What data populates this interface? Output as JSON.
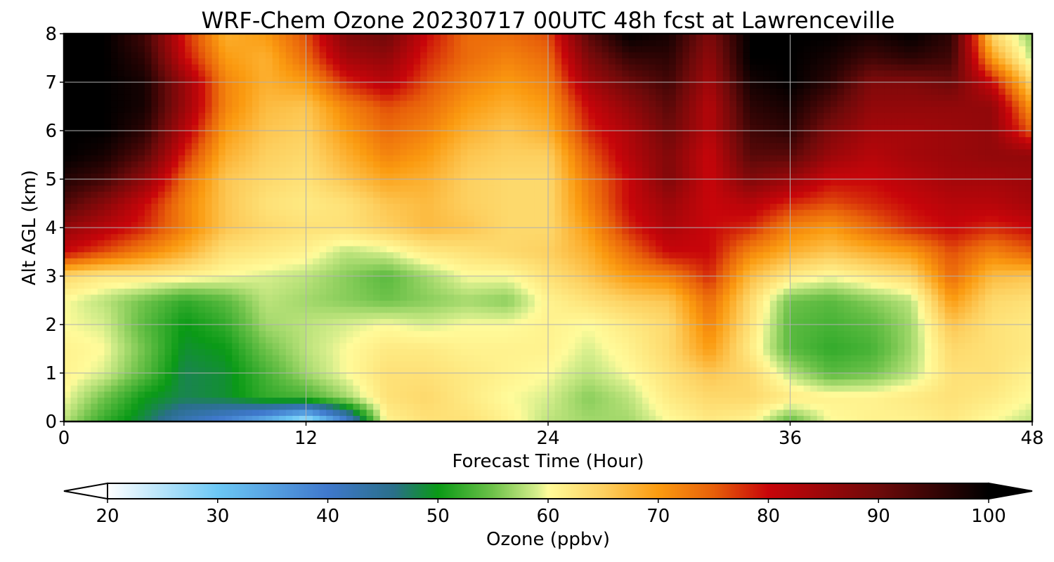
{
  "chart_data": [
    {
      "type": "heatmap",
      "title": "WRF-Chem Ozone  20230717 00UTC 48h fcst at Lawrenceville",
      "xlabel": "Forecast Time (Hour)",
      "ylabel": "Alt AGL (km)",
      "xlim": [
        0,
        48
      ],
      "ylim": [
        0,
        8
      ],
      "xticks": [
        "0",
        "12",
        "24",
        "36",
        "48"
      ],
      "yticks": [
        "0",
        "1",
        "2",
        "3",
        "4",
        "5",
        "6",
        "7",
        "8"
      ],
      "grid": true,
      "x": [
        0,
        2,
        4,
        6,
        8,
        10,
        12,
        14,
        16,
        18,
        20,
        22,
        24,
        26,
        28,
        30,
        32,
        34,
        36,
        38,
        40,
        42,
        44,
        46,
        48
      ],
      "y": [
        0,
        0.5,
        1,
        1.5,
        2,
        2.5,
        3,
        3.5,
        4,
        4.5,
        5,
        5.5,
        6,
        6.5,
        7,
        7.5,
        8
      ],
      "z_units": "ppbv",
      "z": [
        [
          58,
          52,
          48,
          42,
          38,
          32,
          24,
          38,
          61,
          63,
          63,
          61,
          58,
          57,
          57,
          60,
          62,
          61,
          54,
          60,
          61,
          61,
          62,
          60,
          58
        ],
        [
          60,
          55,
          50,
          48,
          49,
          52,
          53,
          57,
          63,
          64,
          62,
          60,
          59,
          56,
          58,
          62,
          64,
          64,
          62,
          61,
          61,
          62,
          63,
          62,
          60
        ],
        [
          61,
          59,
          54,
          48,
          49,
          53,
          57,
          60,
          63,
          63,
          62,
          61,
          60,
          58,
          60,
          63,
          66,
          64,
          58,
          54,
          55,
          58,
          63,
          63,
          61
        ],
        [
          61,
          60,
          55,
          49,
          50,
          55,
          58,
          60,
          62,
          62,
          61,
          61,
          61,
          59,
          61,
          64,
          70,
          62,
          54,
          52,
          53,
          57,
          64,
          63,
          62
        ],
        [
          60,
          59,
          54,
          50,
          52,
          57,
          58,
          59,
          60,
          59,
          60,
          60,
          61,
          60,
          62,
          64,
          72,
          63,
          54,
          53,
          54,
          57,
          66,
          63,
          62
        ],
        [
          60,
          58,
          55,
          52,
          54,
          58,
          57,
          56,
          55,
          56,
          57,
          56,
          61,
          63,
          65,
          66,
          74,
          64,
          55,
          54,
          56,
          58,
          70,
          64,
          63
        ],
        [
          64,
          62,
          62,
          61,
          60,
          59,
          58,
          56,
          54,
          57,
          60,
          60,
          63,
          66,
          70,
          72,
          78,
          67,
          62,
          60,
          62,
          64,
          74,
          67,
          66
        ],
        [
          80,
          76,
          72,
          68,
          63,
          62,
          61,
          58,
          59,
          62,
          63,
          64,
          65,
          68,
          74,
          80,
          80,
          72,
          68,
          66,
          68,
          70,
          76,
          72,
          75
        ],
        [
          86,
          82,
          78,
          72,
          66,
          64,
          63,
          63,
          65,
          67,
          66,
          64,
          64,
          70,
          78,
          83,
          80,
          78,
          72,
          70,
          74,
          78,
          80,
          78,
          80
        ],
        [
          93,
          87,
          80,
          72,
          66,
          63,
          62,
          63,
          66,
          67,
          65,
          64,
          64,
          72,
          80,
          85,
          80,
          82,
          78,
          76,
          78,
          80,
          82,
          82,
          84
        ],
        [
          97,
          94,
          86,
          74,
          66,
          64,
          63,
          66,
          69,
          68,
          65,
          64,
          64,
          73,
          80,
          88,
          80,
          88,
          85,
          80,
          80,
          82,
          84,
          84,
          85
        ],
        [
          100,
          98,
          92,
          78,
          68,
          65,
          64,
          68,
          72,
          70,
          66,
          65,
          65,
          75,
          82,
          88,
          80,
          92,
          92,
          85,
          82,
          84,
          85,
          86,
          86
        ],
        [
          100,
          100,
          96,
          82,
          70,
          66,
          65,
          70,
          74,
          72,
          68,
          66,
          68,
          78,
          83,
          90,
          82,
          94,
          96,
          88,
          84,
          84,
          85,
          86,
          75
        ],
        [
          100,
          100,
          98,
          85,
          72,
          67,
          66,
          72,
          76,
          74,
          70,
          68,
          70,
          80,
          86,
          92,
          82,
          96,
          98,
          92,
          86,
          86,
          86,
          86,
          70
        ],
        [
          100,
          100,
          98,
          85,
          72,
          68,
          70,
          78,
          82,
          76,
          72,
          70,
          72,
          84,
          90,
          94,
          84,
          98,
          100,
          96,
          88,
          88,
          90,
          80,
          64
        ],
        [
          100,
          100,
          96,
          80,
          70,
          68,
          74,
          84,
          86,
          78,
          74,
          72,
          74,
          88,
          95,
          96,
          86,
          100,
          100,
          98,
          94,
          96,
          94,
          70,
          58
        ],
        [
          100,
          100,
          94,
          78,
          68,
          70,
          76,
          88,
          90,
          80,
          74,
          74,
          76,
          92,
          100,
          98,
          88,
          100,
          100,
          100,
          98,
          100,
          96,
          64,
          56
        ]
      ],
      "colorbar": {
        "label": "Ozone  (ppbv)",
        "min": 20,
        "max": 100,
        "extend": "both",
        "ticks": [
          "20",
          "30",
          "40",
          "50",
          "60",
          "70",
          "80",
          "90",
          "100"
        ],
        "colors": [
          {
            "v": 20,
            "c": "#ffffff"
          },
          {
            "v": 30,
            "c": "#6cc8f5"
          },
          {
            "v": 40,
            "c": "#3f78cc"
          },
          {
            "v": 46,
            "c": "#2a6f8a"
          },
          {
            "v": 50,
            "c": "#0a9a16"
          },
          {
            "v": 55,
            "c": "#6ec24a"
          },
          {
            "v": 59,
            "c": "#d6ee8c"
          },
          {
            "v": 60,
            "c": "#fffb9a"
          },
          {
            "v": 65,
            "c": "#fdd060"
          },
          {
            "v": 70,
            "c": "#fb9b10"
          },
          {
            "v": 75,
            "c": "#e8600a"
          },
          {
            "v": 80,
            "c": "#c8050a"
          },
          {
            "v": 90,
            "c": "#6e0a0a"
          },
          {
            "v": 100,
            "c": "#000000"
          }
        ]
      }
    }
  ]
}
